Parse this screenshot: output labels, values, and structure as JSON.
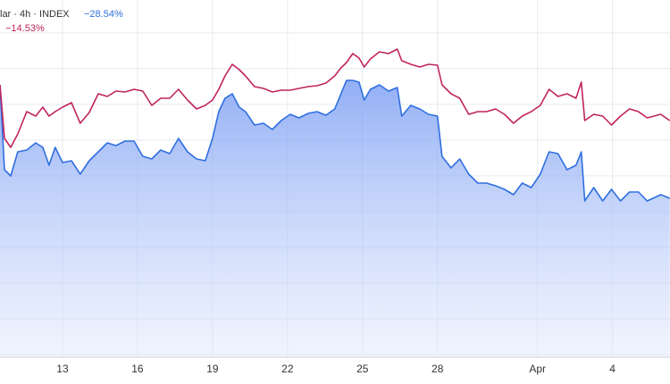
{
  "chart_data": {
    "type": "line",
    "x": [
      10.5,
      10.68,
      10.93,
      11.21,
      11.57,
      11.93,
      12.21,
      12.46,
      12.71,
      13,
      13.36,
      13.71,
      14.07,
      14.43,
      14.79,
      15.14,
      15.5,
      15.86,
      16.21,
      16.57,
      16.93,
      17.29,
      17.64,
      18,
      18.36,
      18.71,
      19,
      19.25,
      19.5,
      19.79,
      20.07,
      20.32,
      20.68,
      21.04,
      21.39,
      21.75,
      22.11,
      22.46,
      22.82,
      23.18,
      23.54,
      23.89,
      24.14,
      24.36,
      24.61,
      24.86,
      25.07,
      25.32,
      25.68,
      26.04,
      26.39,
      26.57,
      26.93,
      27.29,
      27.64,
      28,
      28.18,
      28.54,
      28.89,
      29.25,
      29.61,
      29.96,
      30.32,
      30.68,
      31.04,
      31.39,
      31.75,
      32.11,
      32.46,
      32.82,
      33.18,
      33.54,
      33.75,
      33.89,
      34.25,
      34.61,
      34.96,
      35.32,
      35.68,
      36.04,
      36.39,
      36.93,
      37.29
    ],
    "series": [
      {
        "name": "lar · 4h · INDEX",
        "change_label": "−28.54%",
        "color": "#2f6fe0",
        "area": true,
        "values": [
          -7.94,
          -23.38,
          -24.51,
          -20.13,
          -19.8,
          -18.5,
          -19.31,
          -22.56,
          -19.31,
          -22.08,
          -21.75,
          -24.19,
          -21.75,
          -20.13,
          -18.5,
          -18.99,
          -18.18,
          -18.18,
          -20.94,
          -21.43,
          -19.8,
          -20.45,
          -17.69,
          -20.13,
          -21.43,
          -21.75,
          -17.69,
          -12.81,
          -10.38,
          -9.56,
          -12,
          -12.81,
          -15.25,
          -14.93,
          -16.06,
          -14.44,
          -13.3,
          -13.95,
          -13.14,
          -12.81,
          -13.46,
          -12.33,
          -9.56,
          -7.13,
          -7.13,
          -7.45,
          -10.7,
          -8.75,
          -7.94,
          -9.08,
          -8.43,
          -13.63,
          -11.68,
          -12.33,
          -13.3,
          -13.63,
          -20.94,
          -23.05,
          -21.43,
          -24.19,
          -25.81,
          -25.81,
          -26.3,
          -26.95,
          -27.93,
          -25.81,
          -26.63,
          -24.19,
          -20.13,
          -20.45,
          -23.38,
          -22.56,
          -20.13,
          -29.06,
          -26.63,
          -29.06,
          -26.95,
          -29.06,
          -27.44,
          -27.44,
          -29.06,
          -27.93,
          -28.58
        ]
      },
      {
        "change_label": "−14.53%",
        "color": "#c0245e",
        "area": false,
        "values": [
          -7.94,
          -17.69,
          -19.31,
          -16.88,
          -12.81,
          -13.63,
          -12,
          -13.63,
          -12.81,
          -12,
          -11.19,
          -14.93,
          -12.98,
          -9.56,
          -10.05,
          -9.08,
          -9.24,
          -8.75,
          -9.08,
          -11.68,
          -10.38,
          -10.38,
          -8.75,
          -10.7,
          -12.33,
          -11.68,
          -10.7,
          -8.75,
          -6.31,
          -4.2,
          -5.18,
          -6.31,
          -8.26,
          -8.59,
          -9.24,
          -8.91,
          -8.91,
          -8.59,
          -8.26,
          -8.1,
          -7.61,
          -6.31,
          -4.85,
          -3.88,
          -2.25,
          -3.06,
          -4.69,
          -3.23,
          -1.93,
          -2.25,
          -1.44,
          -3.55,
          -4.2,
          -4.69,
          -4.2,
          -4.36,
          -7.94,
          -9.56,
          -10.38,
          -13.3,
          -12.81,
          -12.81,
          -12.33,
          -13.3,
          -14.93,
          -13.63,
          -12.81,
          -11.68,
          -8.75,
          -10.05,
          -9.56,
          -10.38,
          -7.45,
          -14.44,
          -13.3,
          -13.63,
          -15.25,
          -13.63,
          -12.33,
          -12.81,
          -13.95,
          -13.3,
          -14.44
        ]
      }
    ],
    "xlim": [
      10.5,
      37.3
    ],
    "xticks": [
      13,
      16,
      19,
      22,
      25,
      28,
      {
        "value": 32,
        "label": "Apr"
      },
      {
        "value": 35,
        "label": "4"
      }
    ],
    "ylim": [
      -57.5,
      7.5
    ],
    "yticks": [
      1.5,
      -5,
      -11.5,
      -18,
      -24.5,
      -31,
      -37.5,
      -44,
      -50.5,
      -57
    ],
    "grid": true
  }
}
